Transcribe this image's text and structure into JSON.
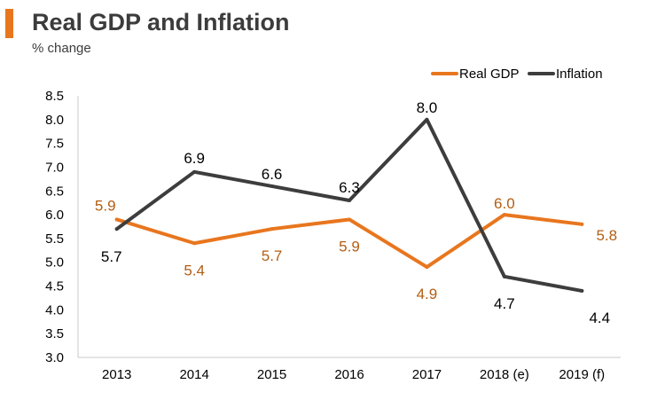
{
  "header": {
    "title": "Real GDP and Inflation",
    "subtitle": "% change"
  },
  "colors": {
    "accent": "#e8761e",
    "gdp": "#e8761e",
    "inflation": "#3d3d3d",
    "gdp_label": "#b35e13",
    "inflation_label": "#000000"
  },
  "chart_data": {
    "type": "line",
    "title": "Real GDP and Inflation",
    "subtitle": "% change",
    "xlabel": "",
    "ylabel": "",
    "categories": [
      "2013",
      "2014",
      "2015",
      "2016",
      "2017",
      "2018 (e)",
      "2019 (f)"
    ],
    "ylim": [
      3.0,
      8.5
    ],
    "yticks": [
      3.0,
      3.5,
      4.0,
      4.5,
      5.0,
      5.5,
      6.0,
      6.5,
      7.0,
      7.5,
      8.0,
      8.5
    ],
    "legend": "top-right",
    "grid": false,
    "series": [
      {
        "name": "Real GDP",
        "values": [
          5.9,
          5.4,
          5.7,
          5.9,
          4.9,
          6.0,
          5.8
        ],
        "labels": [
          "5.9",
          "5.4",
          "5.7",
          "5.9",
          "4.9",
          "6.0",
          "5.8"
        ]
      },
      {
        "name": "Inflation",
        "values": [
          5.7,
          6.9,
          6.6,
          6.3,
          8.0,
          4.7,
          4.4
        ],
        "labels": [
          "5.7",
          "6.9",
          "6.6",
          "6.3",
          "8.0",
          "4.7",
          "4.4"
        ]
      }
    ]
  }
}
